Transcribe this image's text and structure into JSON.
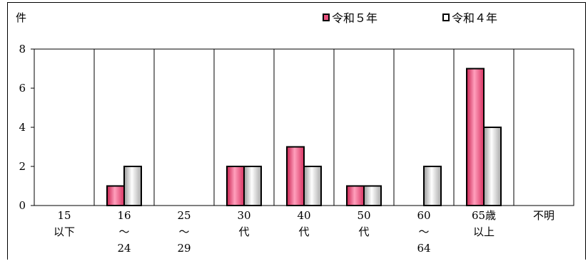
{
  "chart_data": {
    "type": "bar",
    "unit_label": "件",
    "categories": [
      [
        "15",
        "以下"
      ],
      [
        "16",
        "～",
        "24"
      ],
      [
        "25",
        "～",
        "29"
      ],
      [
        "30",
        "代"
      ],
      [
        "40",
        "代"
      ],
      [
        "50",
        "代"
      ],
      [
        "60",
        "～",
        "64"
      ],
      [
        "65歳",
        "以上"
      ],
      [
        "不明"
      ]
    ],
    "series": [
      {
        "name": "令和５年",
        "values": [
          0,
          1,
          0,
          2,
          3,
          1,
          0,
          7,
          0
        ],
        "color": "#e8537e"
      },
      {
        "name": "令和４年",
        "values": [
          0,
          2,
          0,
          2,
          2,
          1,
          2,
          4,
          0
        ],
        "color": "#d9d9d9"
      }
    ],
    "ylim": [
      0,
      8
    ],
    "yticks": [
      0,
      2,
      4,
      6,
      8
    ],
    "legend_position": "top-right",
    "grid": "vertical-category-separators"
  }
}
